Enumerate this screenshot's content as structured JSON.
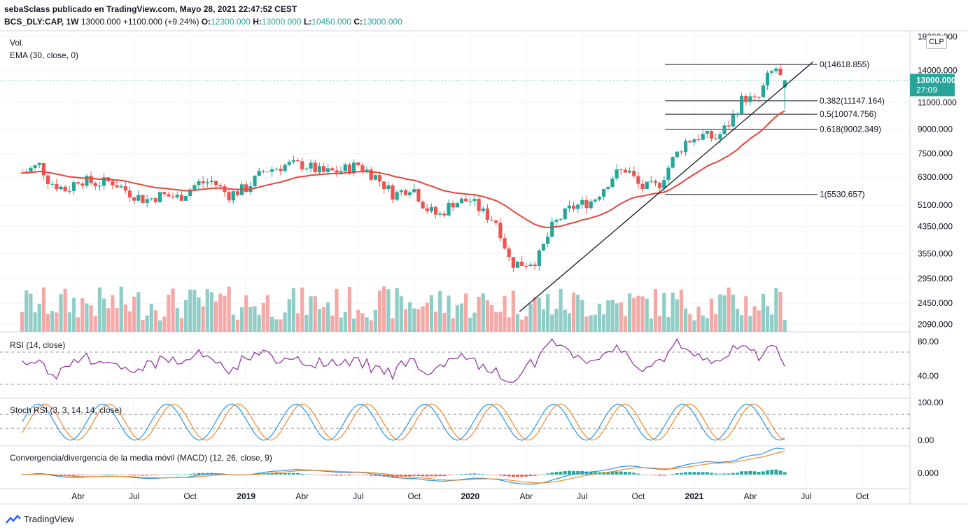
{
  "header": {
    "line1": "sebaSclass publicado en TradingView.com, Mayo 28, 2021 22:47:52 CEST",
    "symbol": "BCS_DLY:CAP, 1W",
    "price": "13000.000",
    "change": "+1100.000 (+9.24%)",
    "o_label": "O:",
    "o_value": "12300.000",
    "h_label": "H:",
    "h_value": "13000.000",
    "l_label": "L:",
    "l_value": "10450.000",
    "c_label": "C:",
    "c_value": "13000.000"
  },
  "panes": {
    "vol_label": "Vol.",
    "ema_label": "EMA (30, close, 0)",
    "rsi_label": "RSI (14, close)",
    "stoch_label": "Stoch RSI (3, 3, 14, 14, close)",
    "macd_label": "Convergencia/divergencia de la media móvil (MACD) (12, 26, close, 9)"
  },
  "currency_button": "CLP",
  "price_badge": {
    "price": "13000.000",
    "countdown": "27:09"
  },
  "logo_text": "TradingView",
  "colors": {
    "up": "#26a69a",
    "down": "#ef5350",
    "up_vol": "#8fcdc6",
    "down_vol": "#f4a9a7",
    "ema": "#e5453a",
    "rsi": "#8e2b9c",
    "stoch_k": "#2c96e0",
    "stoch_d": "#f08a2c",
    "macd": "#2c96e0",
    "signal": "#f08a2c",
    "fib": "#131722"
  },
  "chart_data": {
    "type": "candlestick",
    "y_scale": "log",
    "y_ticks": [
      "18000.000",
      "14000.000",
      "11000.000",
      "9000.000",
      "7500.000",
      "6300.000",
      "5100.000",
      "4350.000",
      "3550.000",
      "2950.000",
      "2450.000",
      "2090.000"
    ],
    "x_ticks": [
      "Abr",
      "Jul",
      "Oct",
      "2019",
      "Abr",
      "Jul",
      "Oct",
      "2020",
      "Abr",
      "Jul",
      "Oct",
      "2021",
      "Abr",
      "Jul",
      "Oct"
    ],
    "fib_levels": [
      {
        "label": "0(14618.855)",
        "value": 14618.855
      },
      {
        "label": "0.382(11147.164)",
        "value": 11147.164
      },
      {
        "label": "0.5(10074.756)",
        "value": 10074.756
      },
      {
        "label": "0.618(9002.349)",
        "value": 9002.349
      },
      {
        "label": "1(5530.657)",
        "value": 5530.657
      }
    ],
    "trendline": {
      "from": [
        2020.22,
        2300
      ],
      "to": [
        2021.53,
        14900
      ]
    },
    "last_price": 13000,
    "close_series": [
      {
        "t": 2018.0,
        "v": 6500
      },
      {
        "t": 2018.08,
        "v": 6900
      },
      {
        "t": 2018.12,
        "v": 6100
      },
      {
        "t": 2018.2,
        "v": 5700
      },
      {
        "t": 2018.25,
        "v": 6200
      },
      {
        "t": 2018.33,
        "v": 6000
      },
      {
        "t": 2018.4,
        "v": 6100
      },
      {
        "t": 2018.48,
        "v": 5600
      },
      {
        "t": 2018.55,
        "v": 5300
      },
      {
        "t": 2018.62,
        "v": 5500
      },
      {
        "t": 2018.7,
        "v": 5400
      },
      {
        "t": 2018.78,
        "v": 6000
      },
      {
        "t": 2018.85,
        "v": 6100
      },
      {
        "t": 2018.92,
        "v": 5500
      },
      {
        "t": 2019.0,
        "v": 5800
      },
      {
        "t": 2019.08,
        "v": 6600
      },
      {
        "t": 2019.18,
        "v": 6900
      },
      {
        "t": 2019.26,
        "v": 6900
      },
      {
        "t": 2019.34,
        "v": 6500
      },
      {
        "t": 2019.42,
        "v": 6600
      },
      {
        "t": 2019.5,
        "v": 6900
      },
      {
        "t": 2019.58,
        "v": 6300
      },
      {
        "t": 2019.66,
        "v": 5500
      },
      {
        "t": 2019.74,
        "v": 5900
      },
      {
        "t": 2019.8,
        "v": 5000
      },
      {
        "t": 2019.86,
        "v": 4700
      },
      {
        "t": 2019.92,
        "v": 5200
      },
      {
        "t": 2020.0,
        "v": 5300
      },
      {
        "t": 2020.06,
        "v": 4800
      },
      {
        "t": 2020.12,
        "v": 4500
      },
      {
        "t": 2020.18,
        "v": 3300
      },
      {
        "t": 2020.24,
        "v": 3300
      },
      {
        "t": 2020.3,
        "v": 3400
      },
      {
        "t": 2020.37,
        "v": 4400
      },
      {
        "t": 2020.45,
        "v": 5000
      },
      {
        "t": 2020.55,
        "v": 5300
      },
      {
        "t": 2020.64,
        "v": 6400
      },
      {
        "t": 2020.7,
        "v": 6700
      },
      {
        "t": 2020.76,
        "v": 5800
      },
      {
        "t": 2020.84,
        "v": 5900
      },
      {
        "t": 2020.9,
        "v": 7100
      },
      {
        "t": 2020.96,
        "v": 8200
      },
      {
        "t": 2021.03,
        "v": 8600
      },
      {
        "t": 2021.1,
        "v": 8400
      },
      {
        "t": 2021.16,
        "v": 9500
      },
      {
        "t": 2021.22,
        "v": 11500
      },
      {
        "t": 2021.28,
        "v": 11000
      },
      {
        "t": 2021.33,
        "v": 13400
      },
      {
        "t": 2021.37,
        "v": 14300
      },
      {
        "t": 2021.4,
        "v": 12200
      },
      {
        "t": 2021.42,
        "v": 13000
      }
    ],
    "rsi_ticks": [
      "80.00",
      "40.00"
    ],
    "stoch_ticks": [
      "100.00",
      "0.00"
    ],
    "macd_ticks": [
      "0.000"
    ]
  }
}
